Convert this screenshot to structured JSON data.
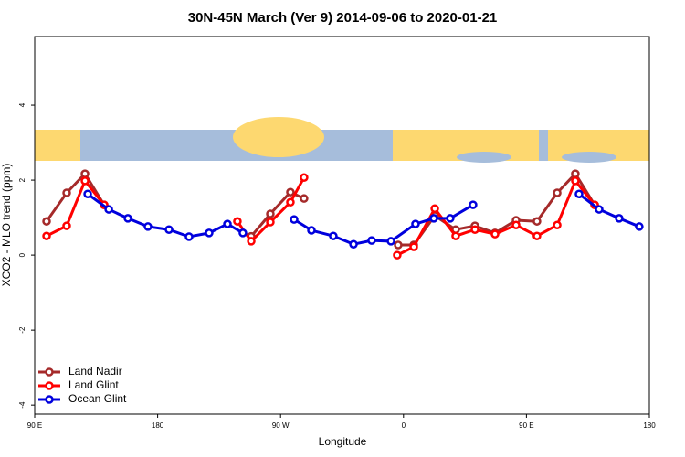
{
  "chart_data": {
    "type": "line",
    "title": "30N-45N March (Ver 9)   2014-09-06 to 2020-01-21",
    "xlabel": "Longitude",
    "ylabel": "XCO2 - MLO trend (ppm)",
    "xlim": [
      90,
      540
    ],
    "ylim": [
      -4.24,
      5.83
    ],
    "xticks": [
      {
        "value": 90,
        "label": "90 E"
      },
      180,
      {
        "value": 270,
        "label": "90 W"
      },
      {
        "value": 360,
        "label": "0"
      },
      {
        "value": 450,
        "label": "90 E"
      },
      {
        "value": 540,
        "label": "180"
      }
    ],
    "yticks": [
      -4,
      -2,
      0,
      2,
      4
    ],
    "legend": "bottom-left",
    "series": [
      {
        "name": "Land Nadir",
        "color": "#a52a2a",
        "x": [
          98.7,
          113.4,
          126.8,
          140.8,
          null,
          248.5,
          262.5,
          277.2,
          287.2,
          null,
          356.1,
          367.5,
          382.9,
          398.2,
          412.3,
          427.0,
          442.4,
          457.7,
          472.5,
          485.8,
          499.9
        ],
        "values": [
          0.9,
          1.66,
          2.17,
          1.34,
          null,
          0.5,
          1.1,
          1.68,
          1.51,
          null,
          0.27,
          0.27,
          1.05,
          0.68,
          0.78,
          0.59,
          0.93,
          0.9,
          1.66,
          2.17,
          1.34
        ]
      },
      {
        "name": "Land Glint",
        "color": "#ff0000",
        "x": [
          98.7,
          113.4,
          126.8,
          140.8,
          null,
          238.4,
          248.5,
          262.5,
          277.2,
          287.2,
          null,
          355.4,
          367.5,
          382.9,
          398.2,
          412.3,
          427.0,
          442.4,
          457.7,
          472.5,
          485.8,
          499.9
        ],
        "values": [
          0.51,
          0.78,
          1.98,
          1.34,
          null,
          0.9,
          0.37,
          0.88,
          1.41,
          2.07,
          null,
          0.0,
          0.22,
          1.24,
          0.51,
          0.68,
          0.56,
          0.8,
          0.51,
          0.8,
          1.98,
          1.34
        ]
      },
      {
        "name": "Ocean Glint",
        "color": "#0000dd",
        "x": [
          128.8,
          144.2,
          158.2,
          172.9,
          188.3,
          203.0,
          217.7,
          231.1,
          242.4,
          null,
          279.9,
          292.6,
          308.6,
          323.4,
          336.7,
          350.8,
          368.8,
          382.2,
          394.2,
          410.9,
          null,
          488.5,
          503.2,
          517.9,
          532.6
        ],
        "values": [
          1.63,
          1.22,
          0.98,
          0.76,
          0.68,
          0.49,
          0.59,
          0.83,
          0.59,
          null,
          0.95,
          0.66,
          0.51,
          0.29,
          0.39,
          0.37,
          0.83,
          0.98,
          0.98,
          1.34,
          null,
          1.63,
          1.22,
          0.98,
          0.76
        ]
      }
    ]
  }
}
